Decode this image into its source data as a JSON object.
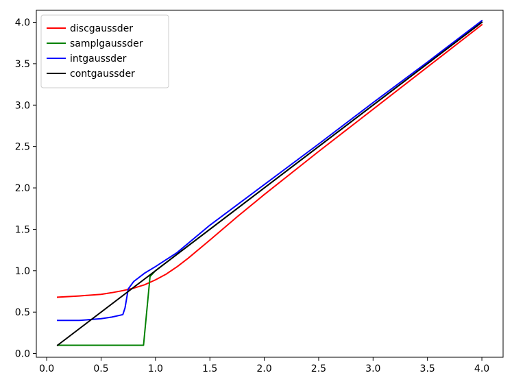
{
  "chart_data": {
    "type": "line",
    "title": "",
    "xlabel": "",
    "ylabel": "",
    "xlim": [
      -0.095,
      4.195
    ],
    "ylim": [
      -0.045,
      4.145
    ],
    "xticks": [
      "0.0",
      "0.5",
      "1.0",
      "1.5",
      "2.0",
      "2.5",
      "3.0",
      "3.5",
      "4.0"
    ],
    "xtick_values": [
      0,
      0.5,
      1.0,
      1.5,
      2.0,
      2.5,
      3.0,
      3.5,
      4.0
    ],
    "yticks": [
      "0.0",
      "0.5",
      "1.0",
      "1.5",
      "2.0",
      "2.5",
      "3.0",
      "3.5",
      "4.0"
    ],
    "ytick_values": [
      0,
      0.5,
      1.0,
      1.5,
      2.0,
      2.5,
      3.0,
      3.5,
      4.0
    ],
    "grid": false,
    "legend_position": "top-left",
    "series": [
      {
        "name": "discgaussder",
        "color": "#ff0000",
        "x": [
          0.1,
          0.3,
          0.5,
          0.6,
          0.7,
          0.8,
          0.9,
          1.0,
          1.1,
          1.2,
          1.3,
          1.5,
          1.75,
          2.0,
          2.5,
          3.0,
          3.5,
          4.0
        ],
        "y": [
          0.68,
          0.695,
          0.715,
          0.735,
          0.76,
          0.79,
          0.83,
          0.89,
          0.96,
          1.05,
          1.15,
          1.37,
          1.65,
          1.92,
          2.44,
          2.95,
          3.46,
          3.97
        ]
      },
      {
        "name": "samplgaussder",
        "color": "#008000",
        "x": [
          0.1,
          0.5,
          0.89,
          0.95,
          1.0,
          1.5,
          2.0,
          2.5,
          3.0,
          3.5,
          4.0
        ],
        "y": [
          0.1,
          0.1,
          0.1,
          0.93,
          1.0,
          1.5,
          2.0,
          2.5,
          3.0,
          3.5,
          4.0
        ]
      },
      {
        "name": "intgaussder",
        "color": "#0000ff",
        "x": [
          0.1,
          0.3,
          0.5,
          0.6,
          0.7,
          0.72,
          0.75,
          0.8,
          0.9,
          1.0,
          1.2,
          1.5,
          2.0,
          2.5,
          3.0,
          3.5,
          4.0
        ],
        "y": [
          0.4,
          0.4,
          0.42,
          0.44,
          0.47,
          0.55,
          0.78,
          0.87,
          0.97,
          1.05,
          1.22,
          1.55,
          2.04,
          2.53,
          3.03,
          3.52,
          4.02
        ]
      },
      {
        "name": "contgaussder",
        "color": "#000000",
        "x": [
          0.1,
          4.0
        ],
        "y": [
          0.1,
          4.0
        ]
      }
    ]
  }
}
